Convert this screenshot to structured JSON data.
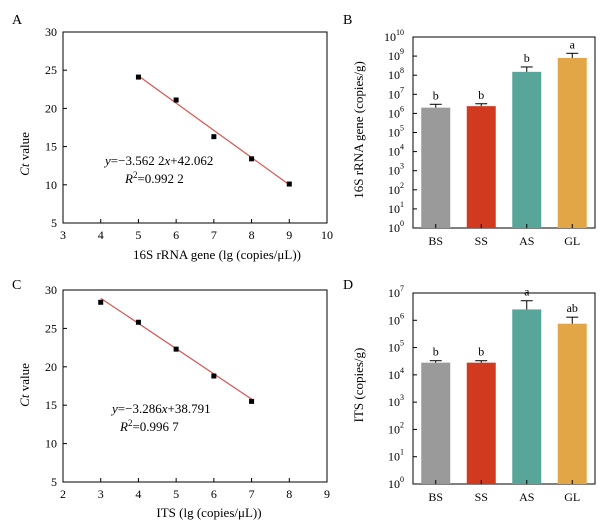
{
  "chart_data": [
    {
      "panel": "A",
      "type": "scatter",
      "xlabel": "16S rRNA gene (lg (copies/μL))",
      "ylabel": "Ct value",
      "xlim": [
        3,
        10
      ],
      "ylim": [
        5,
        30
      ],
      "xticks": [
        3,
        4,
        5,
        6,
        7,
        8,
        9,
        10
      ],
      "yticks": [
        5,
        10,
        15,
        20,
        25,
        30
      ],
      "points": [
        {
          "x": 5,
          "y": 24.1
        },
        {
          "x": 6,
          "y": 21.1
        },
        {
          "x": 7,
          "y": 16.3
        },
        {
          "x": 8,
          "y": 13.4
        },
        {
          "x": 9,
          "y": 10.1
        }
      ],
      "fit": {
        "slope": -3.5622,
        "intercept": 42.062
      },
      "equation_parts": [
        "y",
        "=−3.562 2",
        "x",
        "+42.062"
      ],
      "r2_parts": [
        "R",
        "2",
        "=0.992 2"
      ],
      "point_color": "#000000",
      "line_color": "#d9534f"
    },
    {
      "panel": "B",
      "type": "bar",
      "log_scale": true,
      "ylabel": "16S rRNA gene (copies/g)",
      "categories": [
        "BS",
        "SS",
        "AS",
        "GL"
      ],
      "values": [
        2000000,
        2400000,
        150000000,
        800000000
      ],
      "errors_upper": [
        3000000,
        3200000,
        270000000,
        1400000000
      ],
      "labels": [
        "b",
        "b",
        "b",
        "a"
      ],
      "colors": [
        "#9a9a9a",
        "#d23a20",
        "#58a69a",
        "#e3a646"
      ],
      "yexp_range": [
        0,
        10
      ],
      "ytick_base": "10"
    },
    {
      "panel": "C",
      "type": "scatter",
      "xlabel": "ITS (lg (copies/μL))",
      "ylabel": "Ct value",
      "xlim": [
        2,
        9
      ],
      "ylim": [
        5,
        30
      ],
      "xticks": [
        2,
        3,
        4,
        5,
        6,
        7,
        8,
        9
      ],
      "yticks": [
        5,
        10,
        15,
        20,
        25,
        30
      ],
      "points": [
        {
          "x": 3,
          "y": 28.4
        },
        {
          "x": 4,
          "y": 25.8
        },
        {
          "x": 5,
          "y": 22.3
        },
        {
          "x": 6,
          "y": 18.8
        },
        {
          "x": 7,
          "y": 15.5
        }
      ],
      "fit": {
        "slope": -3.286,
        "intercept": 38.791
      },
      "equation_parts": [
        "y",
        "=−3.286",
        "x",
        "+38.791"
      ],
      "r2_parts": [
        "R",
        "2",
        "=0.996 7"
      ],
      "point_color": "#000000",
      "line_color": "#d9534f"
    },
    {
      "panel": "D",
      "type": "bar",
      "log_scale": true,
      "ylabel": "ITS (copies/g)",
      "categories": [
        "BS",
        "SS",
        "AS",
        "GL"
      ],
      "values": [
        28000,
        28000,
        2500000,
        750000
      ],
      "errors_upper": [
        33000,
        33000,
        5200000,
        1300000
      ],
      "labels": [
        "b",
        "b",
        "a",
        "ab"
      ],
      "colors": [
        "#9a9a9a",
        "#d23a20",
        "#58a69a",
        "#e3a646"
      ],
      "yexp_range": [
        0,
        7
      ],
      "ytick_base": "10"
    }
  ]
}
